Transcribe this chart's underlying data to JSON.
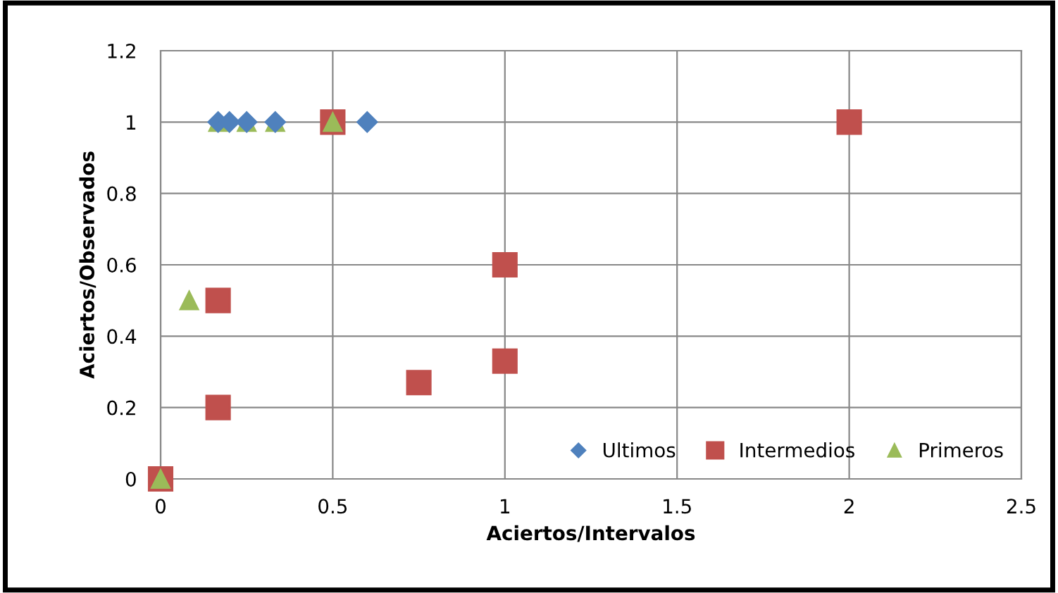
{
  "chart_data": {
    "type": "scatter",
    "xlabel": "Aciertos/Intervalos",
    "ylabel": "Aciertos/Observados",
    "xlim": [
      0,
      2.5
    ],
    "xticks": [
      0,
      0.5,
      1,
      1.5,
      2,
      2.5
    ],
    "ylim": [
      0,
      1.2
    ],
    "yticks": [
      0,
      0.2,
      0.4,
      0.6,
      0.8,
      1,
      1.2
    ],
    "grid": true,
    "legend": "bottom right",
    "series": [
      {
        "name": "Ultimos",
        "color": "#4f81bd",
        "marker": "diamond",
        "x": [
          0.167,
          0.2,
          0.25,
          0.333,
          0.6
        ],
        "values": [
          1,
          1,
          1,
          1,
          1
        ]
      },
      {
        "name": "Intermedios",
        "color": "#c0504d",
        "marker": "square",
        "x": [
          0,
          0.167,
          0.167,
          0.5,
          0.75,
          1,
          1,
          2
        ],
        "values": [
          0,
          0.2,
          0.5,
          1,
          0.27,
          0.33,
          0.6,
          1
        ]
      },
      {
        "name": "Primeros",
        "color": "#9bbb59",
        "marker": "triangle",
        "x": [
          0,
          0.083,
          0.167,
          0.25,
          0.333,
          0.5
        ],
        "values": [
          0,
          0.5,
          1,
          1,
          1,
          1
        ]
      }
    ]
  }
}
